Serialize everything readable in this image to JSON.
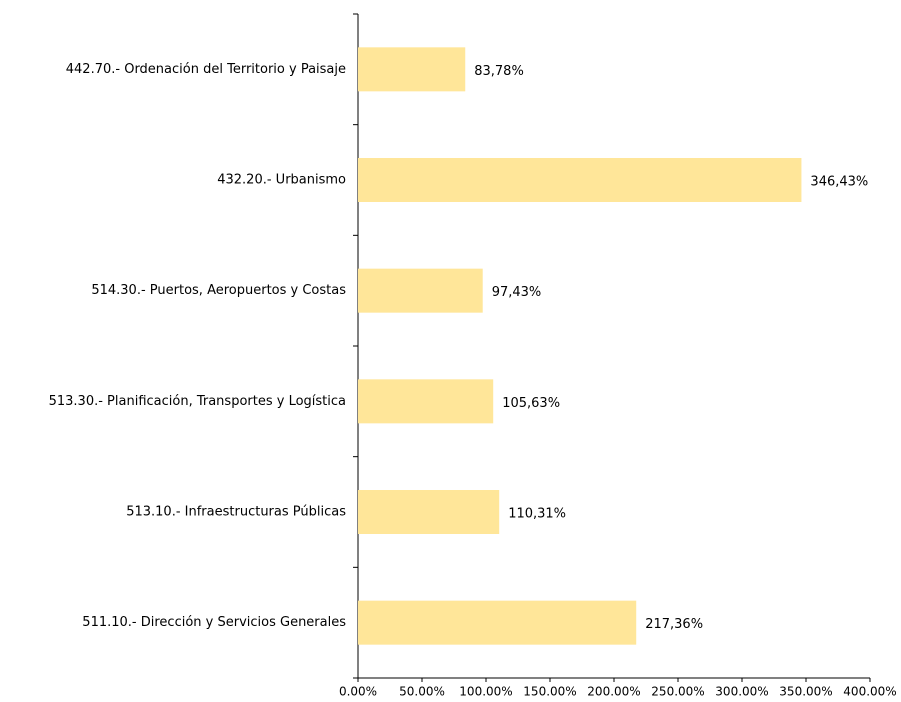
{
  "chart_data": {
    "type": "barh",
    "categories": [
      "442.70.- Ordenación del Territorio y Paisaje",
      "432.20.- Urbanismo",
      "514.30.- Puertos, Aeropuertos y Costas",
      "513.30.- Planificación, Transportes y Logística",
      "513.10.- Infraestructuras Públicas",
      "511.10.- Dirección y Servicios Generales"
    ],
    "values": [
      83.78,
      346.43,
      97.43,
      105.63,
      110.31,
      217.36
    ],
    "value_labels": [
      "83,78%",
      "346,43%",
      "97,43%",
      "105,63%",
      "110,31%",
      "217,36%"
    ],
    "color": "#ffe699",
    "xlim": [
      0,
      400
    ],
    "xticks": [
      {
        "value": 0,
        "label": "0.00%"
      },
      {
        "value": 50,
        "label": "50.00%"
      },
      {
        "value": 100,
        "label": "100.00%"
      },
      {
        "value": 150,
        "label": "150.00%"
      },
      {
        "value": 200,
        "label": "200.00%"
      },
      {
        "value": 250,
        "label": "250.00%"
      },
      {
        "value": 300,
        "label": "300.00%"
      },
      {
        "value": 350,
        "label": "350.00%"
      },
      {
        "value": 400,
        "label": "400.00%"
      }
    ]
  }
}
